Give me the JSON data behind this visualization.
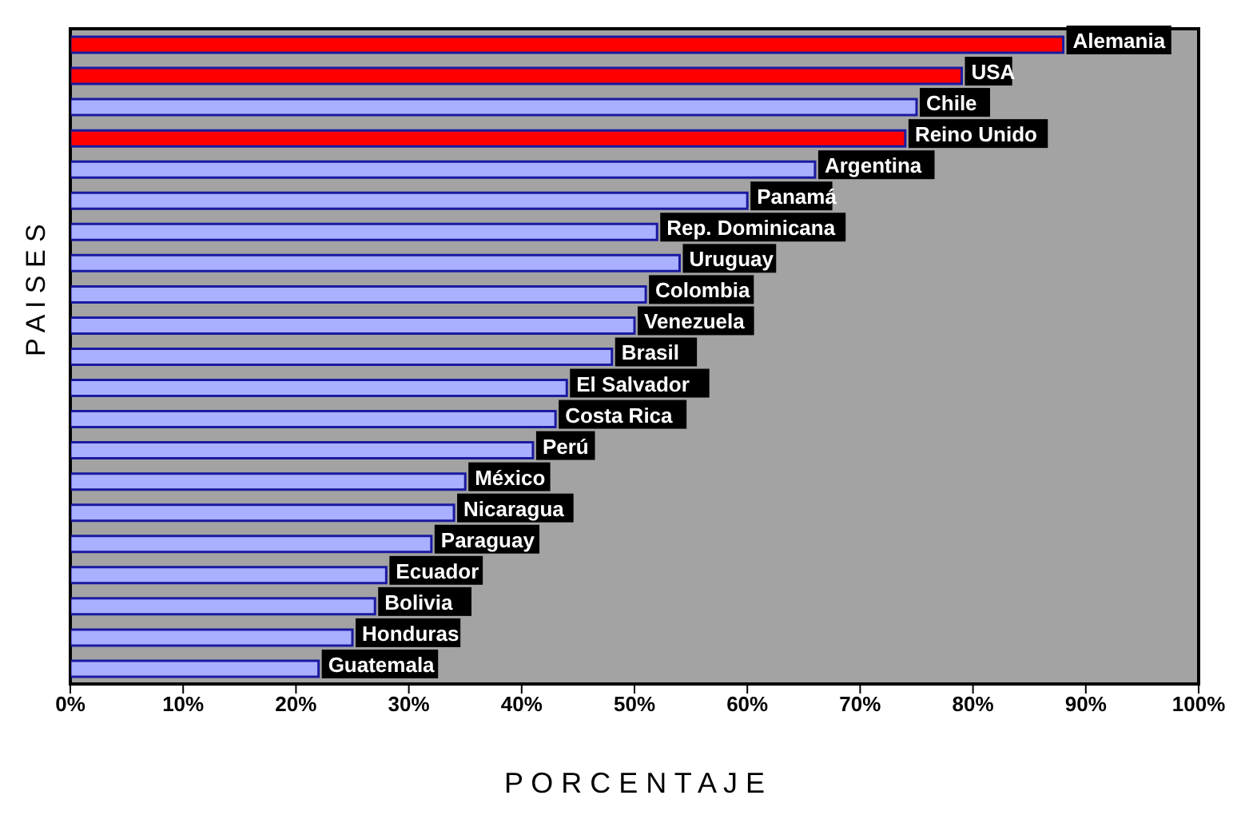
{
  "chart_data": {
    "type": "bar",
    "orientation": "horizontal",
    "xlabel": "P O R C E N T A J E",
    "ylabel": "P A I S E S",
    "categories": [
      "Alemania",
      "USA",
      "Chile",
      "Reino Unido",
      "Argentina",
      "Panamá",
      "Rep. Dominicana",
      "Uruguay",
      "Colombia",
      "Venezuela",
      "Brasil",
      "El Salvador",
      "Costa Rica",
      "Perú",
      "México",
      "Nicaragua",
      "Paraguay",
      "Ecuador",
      "Bolivia",
      "Honduras",
      "Guatemala"
    ],
    "values": [
      88,
      79,
      75,
      74,
      66,
      60,
      52,
      54,
      51,
      50,
      48,
      44,
      43,
      41,
      35,
      34,
      32,
      28,
      27,
      25,
      22
    ],
    "colors": [
      "#ff0000",
      "#ff0000",
      "#aab0ff",
      "#ff0000",
      "#aab0ff",
      "#aab0ff",
      "#aab0ff",
      "#aab0ff",
      "#aab0ff",
      "#aab0ff",
      "#aab0ff",
      "#aab0ff",
      "#aab0ff",
      "#aab0ff",
      "#aab0ff",
      "#aab0ff",
      "#aab0ff",
      "#aab0ff",
      "#aab0ff",
      "#aab0ff",
      "#aab0ff"
    ],
    "xlim": [
      0,
      100
    ],
    "xticks": [
      {
        "value": 0,
        "label": "0%"
      },
      {
        "value": 10,
        "label": "10%"
      },
      {
        "value": 20,
        "label": "20%"
      },
      {
        "value": 30,
        "label": "30%"
      },
      {
        "value": 40,
        "label": "40%"
      },
      {
        "value": 50,
        "label": "50%"
      },
      {
        "value": 60,
        "label": "60%"
      },
      {
        "value": 70,
        "label": "70%"
      },
      {
        "value": 80,
        "label": "80%"
      },
      {
        "value": 90,
        "label": "90%"
      },
      {
        "value": 100,
        "label": "100%"
      }
    ],
    "legend": false
  }
}
